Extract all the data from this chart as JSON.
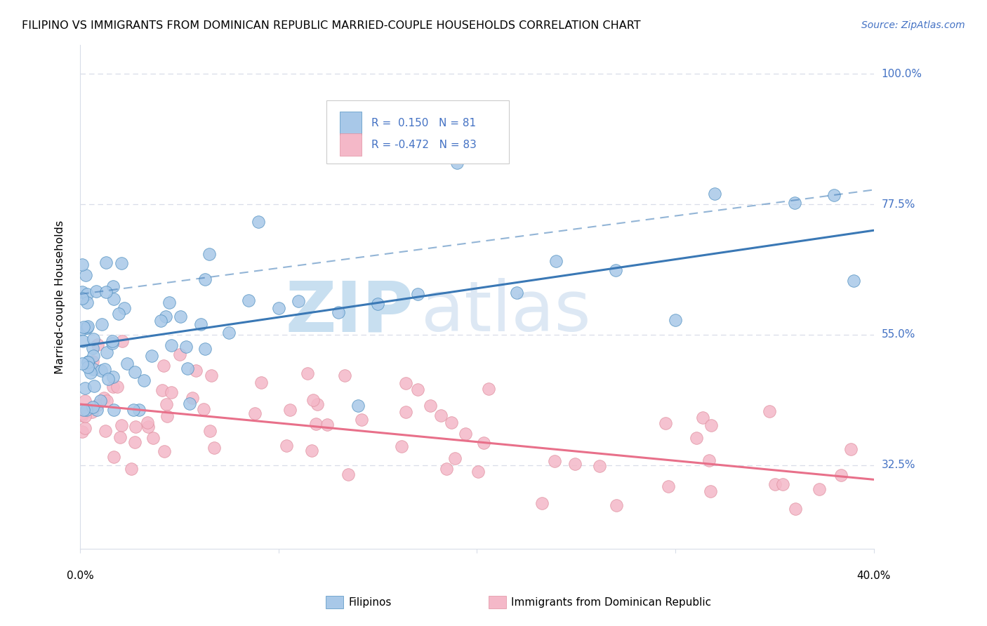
{
  "title": "FILIPINO VS IMMIGRANTS FROM DOMINICAN REPUBLIC MARRIED-COUPLE HOUSEHOLDS CORRELATION CHART",
  "source": "Source: ZipAtlas.com",
  "ylabel": "Married-couple Households",
  "yticks": [
    100.0,
    77.5,
    55.0,
    32.5
  ],
  "ytick_labels": [
    "100.0%",
    "77.5%",
    "55.0%",
    "32.5%"
  ],
  "blue_color": "#a8c8e8",
  "pink_color": "#f4b8c8",
  "blue_line_color": "#3a78b5",
  "pink_line_color": "#e8708a",
  "blue_dot_edge": "#5090c0",
  "pink_dot_edge": "#e090a0",
  "background_color": "#ffffff",
  "grid_color": "#d8dde8",
  "xlim": [
    0.0,
    40.0
  ],
  "ylim": [
    18.0,
    105.0
  ],
  "blue_reg_y0": 53.0,
  "blue_reg_y1": 73.0,
  "blue_dash_y0": 62.0,
  "blue_dash_y1": 80.0,
  "pink_reg_y0": 43.0,
  "pink_reg_y1": 30.0,
  "legend_r1": "R =  0.150",
  "legend_n1": "N = 81",
  "legend_r2": "R = -0.472",
  "legend_n2": "N = 83",
  "right_axis_color": "#4472c4",
  "source_color": "#4472c4",
  "watermark_zip_color": "#c8dff0",
  "watermark_atlas_color": "#dde8f4"
}
